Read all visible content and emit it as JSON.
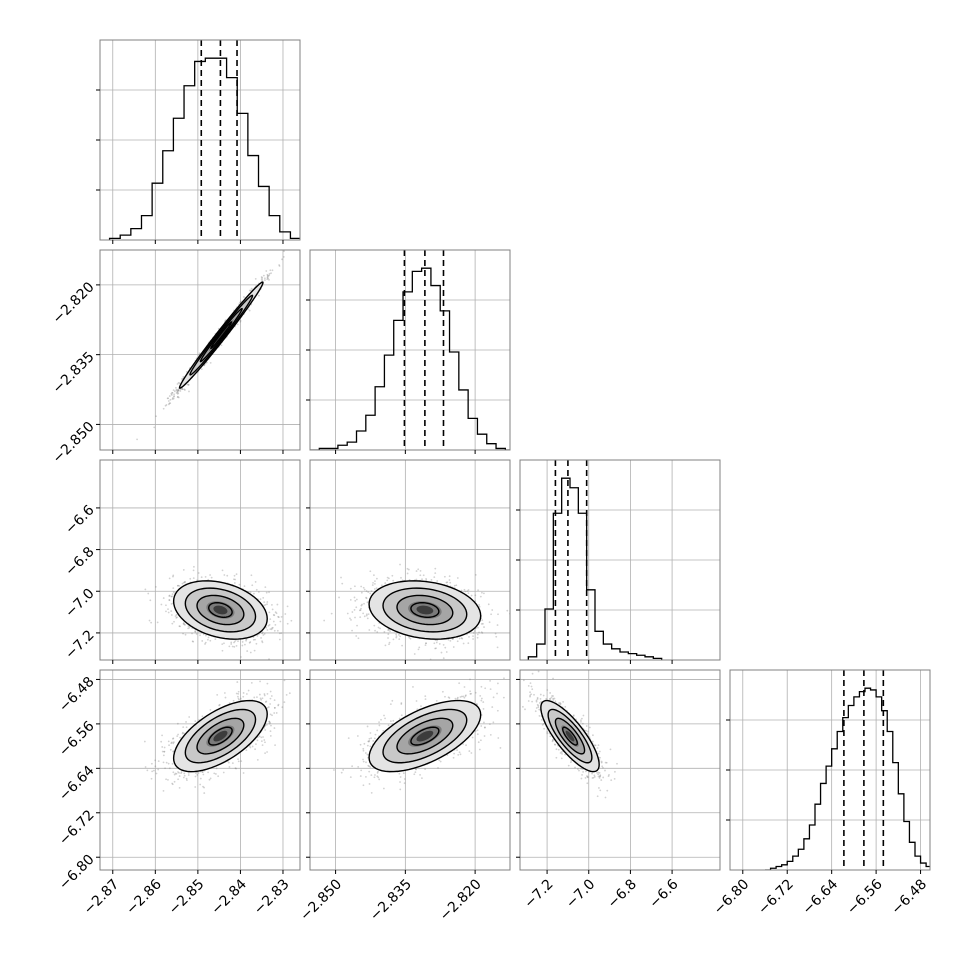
{
  "chart_data": {
    "type": "corner",
    "title": "",
    "parameters": [
      {
        "key": "p1",
        "ticks": [
          -2.87,
          -2.86,
          -2.85,
          -2.84,
          -2.83
        ],
        "tick_labels": [
          "−2.87",
          "−2.86",
          "−2.85",
          "−2.84",
          "−2.83"
        ],
        "range": [
          -2.873,
          -2.826
        ]
      },
      {
        "key": "p2",
        "ticks": [
          -2.85,
          -2.835,
          -2.82
        ],
        "tick_labels": [
          "−2.850",
          "−2.835",
          "−2.820"
        ],
        "range": [
          -2.8555,
          -2.8125
        ]
      },
      {
        "key": "p3",
        "ticks": [
          -7.2,
          -7.0,
          -6.8,
          -6.6
        ],
        "tick_labels": [
          "−7.2",
          "−7.0",
          "−6.8",
          "−6.6"
        ],
        "range": [
          -7.33,
          -6.37
        ]
      },
      {
        "key": "p4",
        "ticks": [
          -6.8,
          -6.72,
          -6.64,
          -6.56,
          -6.48
        ],
        "tick_labels": [
          "−6.80",
          "−6.72",
          "−6.64",
          "−6.56",
          "−6.48"
        ],
        "range": [
          -6.823,
          -6.463
        ]
      }
    ],
    "quantiles": {
      "p1": [
        -2.8492,
        -2.8447,
        -2.8408
      ],
      "p2": [
        -2.8352,
        -2.8308,
        -2.8268
      ],
      "p3": [
        -7.16,
        -7.1,
        -7.01
      ],
      "p4": [
        -6.618,
        -6.582,
        -6.547
      ]
    },
    "histograms": {
      "p1": {
        "x": [
          -2.8695,
          -2.867,
          -2.8645,
          -2.862,
          -2.8595,
          -2.857,
          -2.8545,
          -2.852,
          -2.8495,
          -2.847,
          -2.8445,
          -2.842,
          -2.8395,
          -2.837,
          -2.8345,
          -2.832,
          -2.8295,
          -2.827
        ],
        "counts": [
          1,
          3,
          7,
          15,
          35,
          55,
          75,
          95,
          110,
          112,
          112,
          100,
          78,
          52,
          33,
          15,
          5,
          1
        ]
      },
      "p2": {
        "x": [
          -2.8545,
          -2.8525,
          -2.8505,
          -2.8485,
          -2.8465,
          -2.8445,
          -2.8425,
          -2.8405,
          -2.8385,
          -2.8365,
          -2.8345,
          -2.8325,
          -2.8305,
          -2.8285,
          -2.8265,
          -2.8245,
          -2.8225,
          -2.8205,
          -2.8185,
          -2.8165,
          -2.8145,
          -2.8125
        ],
        "counts": [
          0,
          1,
          1,
          3,
          5,
          12,
          22,
          40,
          60,
          82,
          100,
          113,
          115,
          104,
          88,
          62,
          38,
          20,
          10,
          4,
          1,
          0
        ]
      },
      "p3": {
        "x": [
          -7.27,
          -7.23,
          -7.19,
          -7.15,
          -7.11,
          -7.07,
          -7.03,
          -6.99,
          -6.95,
          -6.91,
          -6.87,
          -6.83,
          -6.79,
          -6.75,
          -6.71,
          -6.67
        ],
        "counts": [
          2,
          10,
          32,
          92,
          114,
          108,
          92,
          44,
          18,
          10,
          7,
          5,
          4,
          3,
          2,
          1
        ]
      },
      "p4": {
        "x": [
          -6.755,
          -6.745,
          -6.735,
          -6.725,
          -6.715,
          -6.705,
          -6.695,
          -6.685,
          -6.675,
          -6.665,
          -6.655,
          -6.645,
          -6.635,
          -6.625,
          -6.615,
          -6.605,
          -6.595,
          -6.585,
          -6.575,
          -6.565,
          -6.555,
          -6.545,
          -6.535,
          -6.525,
          -6.515,
          -6.505,
          -6.495,
          -6.485,
          -6.475,
          -6.465
        ],
        "counts": [
          0,
          1,
          2,
          3,
          5,
          8,
          12,
          18,
          26,
          38,
          50,
          60,
          70,
          80,
          88,
          95,
          100,
          103,
          105,
          104,
          100,
          92,
          80,
          62,
          44,
          28,
          16,
          8,
          4,
          2
        ]
      }
    },
    "joint": [
      {
        "row": 1,
        "col": 0,
        "mean": [
          -2.8445,
          -2.8308
        ],
        "sd": [
          0.0049,
          0.0057
        ],
        "rho": 0.99
      },
      {
        "row": 2,
        "col": 0,
        "mean": [
          -2.8447,
          -7.09
        ],
        "sd": [
          0.0055,
          0.07
        ],
        "rho": -0.3
      },
      {
        "row": 2,
        "col": 1,
        "mean": [
          -2.8308,
          -7.09
        ],
        "sd": [
          0.006,
          0.07
        ],
        "rho": -0.2
      },
      {
        "row": 3,
        "col": 0,
        "mean": [
          -2.8447,
          -6.582
        ],
        "sd": [
          0.0055,
          0.032
        ],
        "rho": 0.62
      },
      {
        "row": 3,
        "col": 1,
        "mean": [
          -2.8308,
          -6.582
        ],
        "sd": [
          0.006,
          0.032
        ],
        "rho": 0.6
      },
      {
        "row": 3,
        "col": 2,
        "mean": [
          -7.09,
          -6.582
        ],
        "sd": [
          0.07,
          0.032
        ],
        "rho": -0.8
      }
    ],
    "contour_levels_sigma": [
      0.5,
      1.0,
      1.5,
      2.0
    ],
    "grid": true,
    "colors": {
      "line": "#000000",
      "grid": "#b0b0b0",
      "scatter": "#7f7f7f",
      "frame": "#808080"
    }
  }
}
